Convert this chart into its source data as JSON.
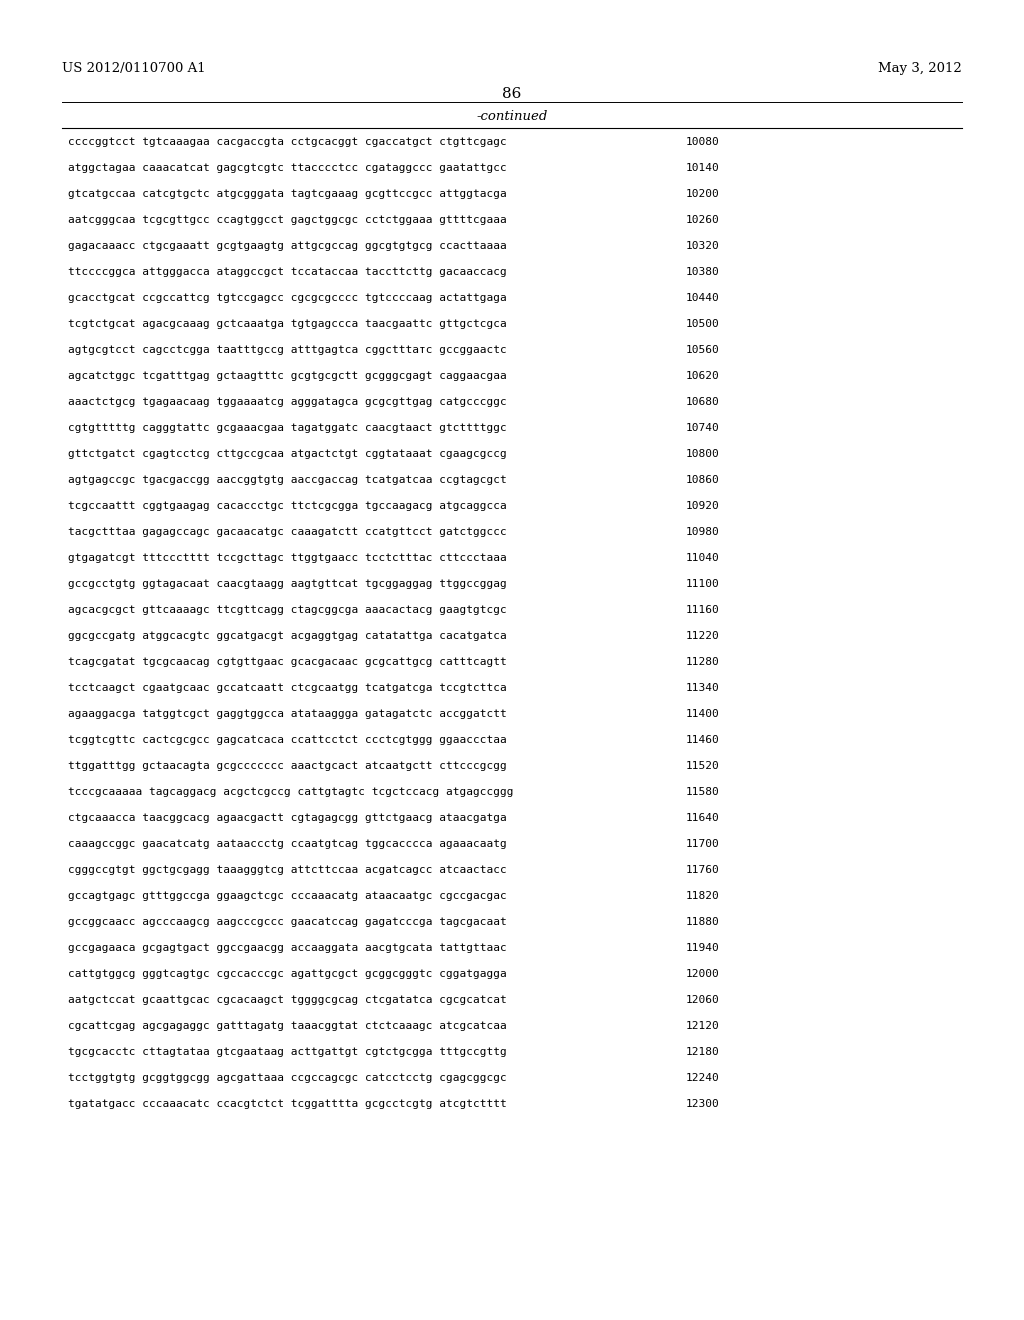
{
  "header_left": "US 2012/0110700 A1",
  "header_right": "May 3, 2012",
  "page_number": "86",
  "continued_label": "-continued",
  "background_color": "#ffffff",
  "text_color": "#000000",
  "sequence_lines": [
    [
      "ccccggtcct tgtcaaagaa cacgaccgta cctgcacggt cgaccatgct ctgttcgagc",
      "10080"
    ],
    [
      "atggctagaa caaacatcat gagcgtcgtc ttacccctcc cgataggccc gaatattgcc",
      "10140"
    ],
    [
      "gtcatgccaa catcgtgctc atgcgggata tagtcgaaag gcgttccgcc attggtacga",
      "10200"
    ],
    [
      "aatcgggcaa tcgcgttgcc ccagtggcct gagctggcgc cctctggaaa gttttcgaaa",
      "10260"
    ],
    [
      "gagacaaacc ctgcgaaatt gcgtgaagtg attgcgccag ggcgtgtgcg ccacttaaaa",
      "10320"
    ],
    [
      "ttccccggca attgggacca ataggccgct tccataccaa taccttcttg gacaaccacg",
      "10380"
    ],
    [
      "gcacctgcat ccgccattcg tgtccgagcc cgcgcgcccc tgtccccaag actattgaga",
      "10440"
    ],
    [
      "tcgtctgcat agacgcaaag gctcaaatga tgtgagccca taacgaattc gttgctcgca",
      "10500"
    ],
    [
      "agtgcgtcct cagcctcgga taatttgccg atttgagtca cggctttатc gccggaactc",
      "10560"
    ],
    [
      "agcatctggc tcgatttgag gctaagtttc gcgtgcgctt gcgggcgagt caggaacgaa",
      "10620"
    ],
    [
      "aaactctgcg tgagaacaag tggaaaatcg agggatagca gcgcgttgag catgcccggc",
      "10680"
    ],
    [
      "cgtgtttttg cagggtattc gcgaaacgaa tagatggatc caacgtaact gtcttttggc",
      "10740"
    ],
    [
      "gttctgatct cgagtcctcg cttgccgcaa atgactctgt cggtataaat cgaagcgccg",
      "10800"
    ],
    [
      "agtgagccgc tgacgaccgg aaccggtgtg aaccgaccag tcatgatcaa ccgtagcgct",
      "10860"
    ],
    [
      "tcgccaattt cggtgaagag cacaccctgc ttctcgcgga tgccaagacg atgcaggcca",
      "10920"
    ],
    [
      "tacgctttaa gagagccagc gacaacatgc caaagatctt ccatgttcct gatctggccc",
      "10980"
    ],
    [
      "gtgagatcgt tttccctttt tccgcttagc ttggtgaacc tcctctttac cttccctaaa",
      "11040"
    ],
    [
      "gccgcctgtg ggtagacaat caacgtaagg aagtgttcat tgcggaggag ttggccggag",
      "11100"
    ],
    [
      "agcacgcgct gttcaaaagc ttcgttcagg ctagcggcga aaacactacg gaagtgtcgc",
      "11160"
    ],
    [
      "ggcgccgatg atggcacgtc ggcatgacgt acgaggtgag catatattga cacatgatca",
      "11220"
    ],
    [
      "tcagcgatat tgcgcaacag cgtgttgaac gcacgacaac gcgcattgcg catttcagtt",
      "11280"
    ],
    [
      "tcctcaagct cgaatgcaac gccatcaatt ctcgcaatgg tcatgatcga tccgtcttca",
      "11340"
    ],
    [
      "agaaggacga tatggtcgct gaggtggcca atataaggga gatagatctc accggatctt",
      "11400"
    ],
    [
      "tcggtcgttc cactcgcgcc gagcatcaca ccattcctct ccctcgtggg ggaaccctaa",
      "11460"
    ],
    [
      "ttggatttgg gctaacagta gcgccccccc aaactgcact atcaatgctt cttcccgcgg",
      "11520"
    ],
    [
      "tcccgcaaaaa tagcaggacg acgctcgccg cattgtagtc tcgctccacg atgagccggg",
      "11580"
    ],
    [
      "ctgcaaacca taacggcacg agaacgactt cgtagagcgg gttctgaacg ataacgatga",
      "11640"
    ],
    [
      "caaagccggc gaacatcatg aataaccctg ccaatgtcag tggcacccca agaaacaatg",
      "11700"
    ],
    [
      "cgggccgtgt ggctgcgagg taaagggtcg attcttccaa acgatcagcc atcaactacc",
      "11760"
    ],
    [
      "gccagtgagc gtttggccga ggaagctcgc cccaaacatg ataacaatgc cgccgacgac",
      "11820"
    ],
    [
      "gccggcaacc agcccaagcg aagcccgccc gaacatccag gagatcccga tagcgacaat",
      "11880"
    ],
    [
      "gccgagaaca gcgagtgact ggccgaacgg accaaggata aacgtgcata tattgttaac",
      "11940"
    ],
    [
      "cattgtggcg gggtcagtgc cgccacccgc agattgcgct gcggcgggtc cggatgagga",
      "12000"
    ],
    [
      "aatgctccat gcaattgcac cgcacaagct tggggcgcag ctcgatatca cgcgcatcat",
      "12060"
    ],
    [
      "cgcattcgag agcgagaggc gatttagatg taaacggtat ctctcaaagc atcgcatcaa",
      "12120"
    ],
    [
      "tgcgcacctc cttagtataa gtcgaataag acttgattgt cgtctgcgga tttgccgttg",
      "12180"
    ],
    [
      "tcctggtgtg gcggtggcgg agcgattaaa ccgccagcgc catcctcctg cgagcggcgc",
      "12240"
    ],
    [
      "tgatatgacc cccaaacatc ccacgtctct tcggatttta gcgcctcgtg atcgtctttt",
      "12300"
    ]
  ]
}
